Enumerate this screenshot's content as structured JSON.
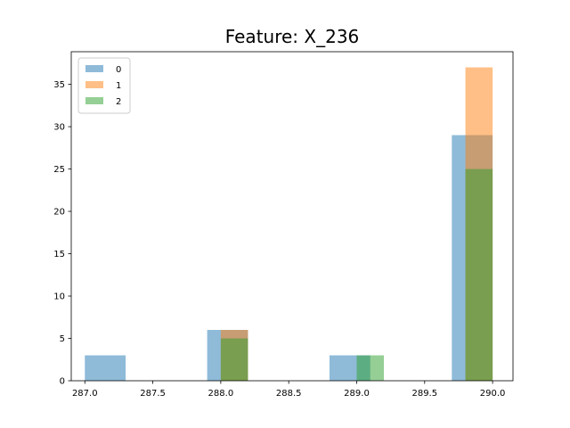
{
  "chart_data": {
    "type": "histogram",
    "title": "Feature: X_236",
    "xlabel": "",
    "ylabel": "",
    "xlim": [
      286.9,
      290.15
    ],
    "ylim": [
      0,
      38.85
    ],
    "xticks": [
      287.0,
      287.5,
      288.0,
      288.5,
      289.0,
      289.5,
      290.0
    ],
    "xtick_labels": [
      "287.0",
      "287.5",
      "288.0",
      "288.5",
      "289.0",
      "289.5",
      "290.0"
    ],
    "yticks": [
      0,
      5,
      10,
      15,
      20,
      25,
      30,
      35
    ],
    "ytick_labels": [
      "0",
      "5",
      "10",
      "15",
      "20",
      "25",
      "30",
      "35"
    ],
    "grid": false,
    "legend_position": "top-left",
    "series": [
      {
        "name": "0",
        "color": "#1f77b4",
        "bins": [
          {
            "x0": 287.0,
            "x1": 287.3,
            "count": 3
          },
          {
            "x0": 287.9,
            "x1": 288.2,
            "count": 6
          },
          {
            "x0": 288.8,
            "x1": 289.1,
            "count": 3
          },
          {
            "x0": 289.7,
            "x1": 290.0,
            "count": 29
          }
        ]
      },
      {
        "name": "1",
        "color": "#ff7f0e",
        "bins": [
          {
            "x0": 288.0,
            "x1": 288.2,
            "count": 6
          },
          {
            "x0": 289.8,
            "x1": 290.0,
            "count": 37
          }
        ]
      },
      {
        "name": "2",
        "color": "#2ca02c",
        "bins": [
          {
            "x0": 288.0,
            "x1": 288.2,
            "count": 5
          },
          {
            "x0": 289.0,
            "x1": 289.2,
            "count": 3
          },
          {
            "x0": 289.8,
            "x1": 290.0,
            "count": 25
          }
        ]
      }
    ]
  }
}
